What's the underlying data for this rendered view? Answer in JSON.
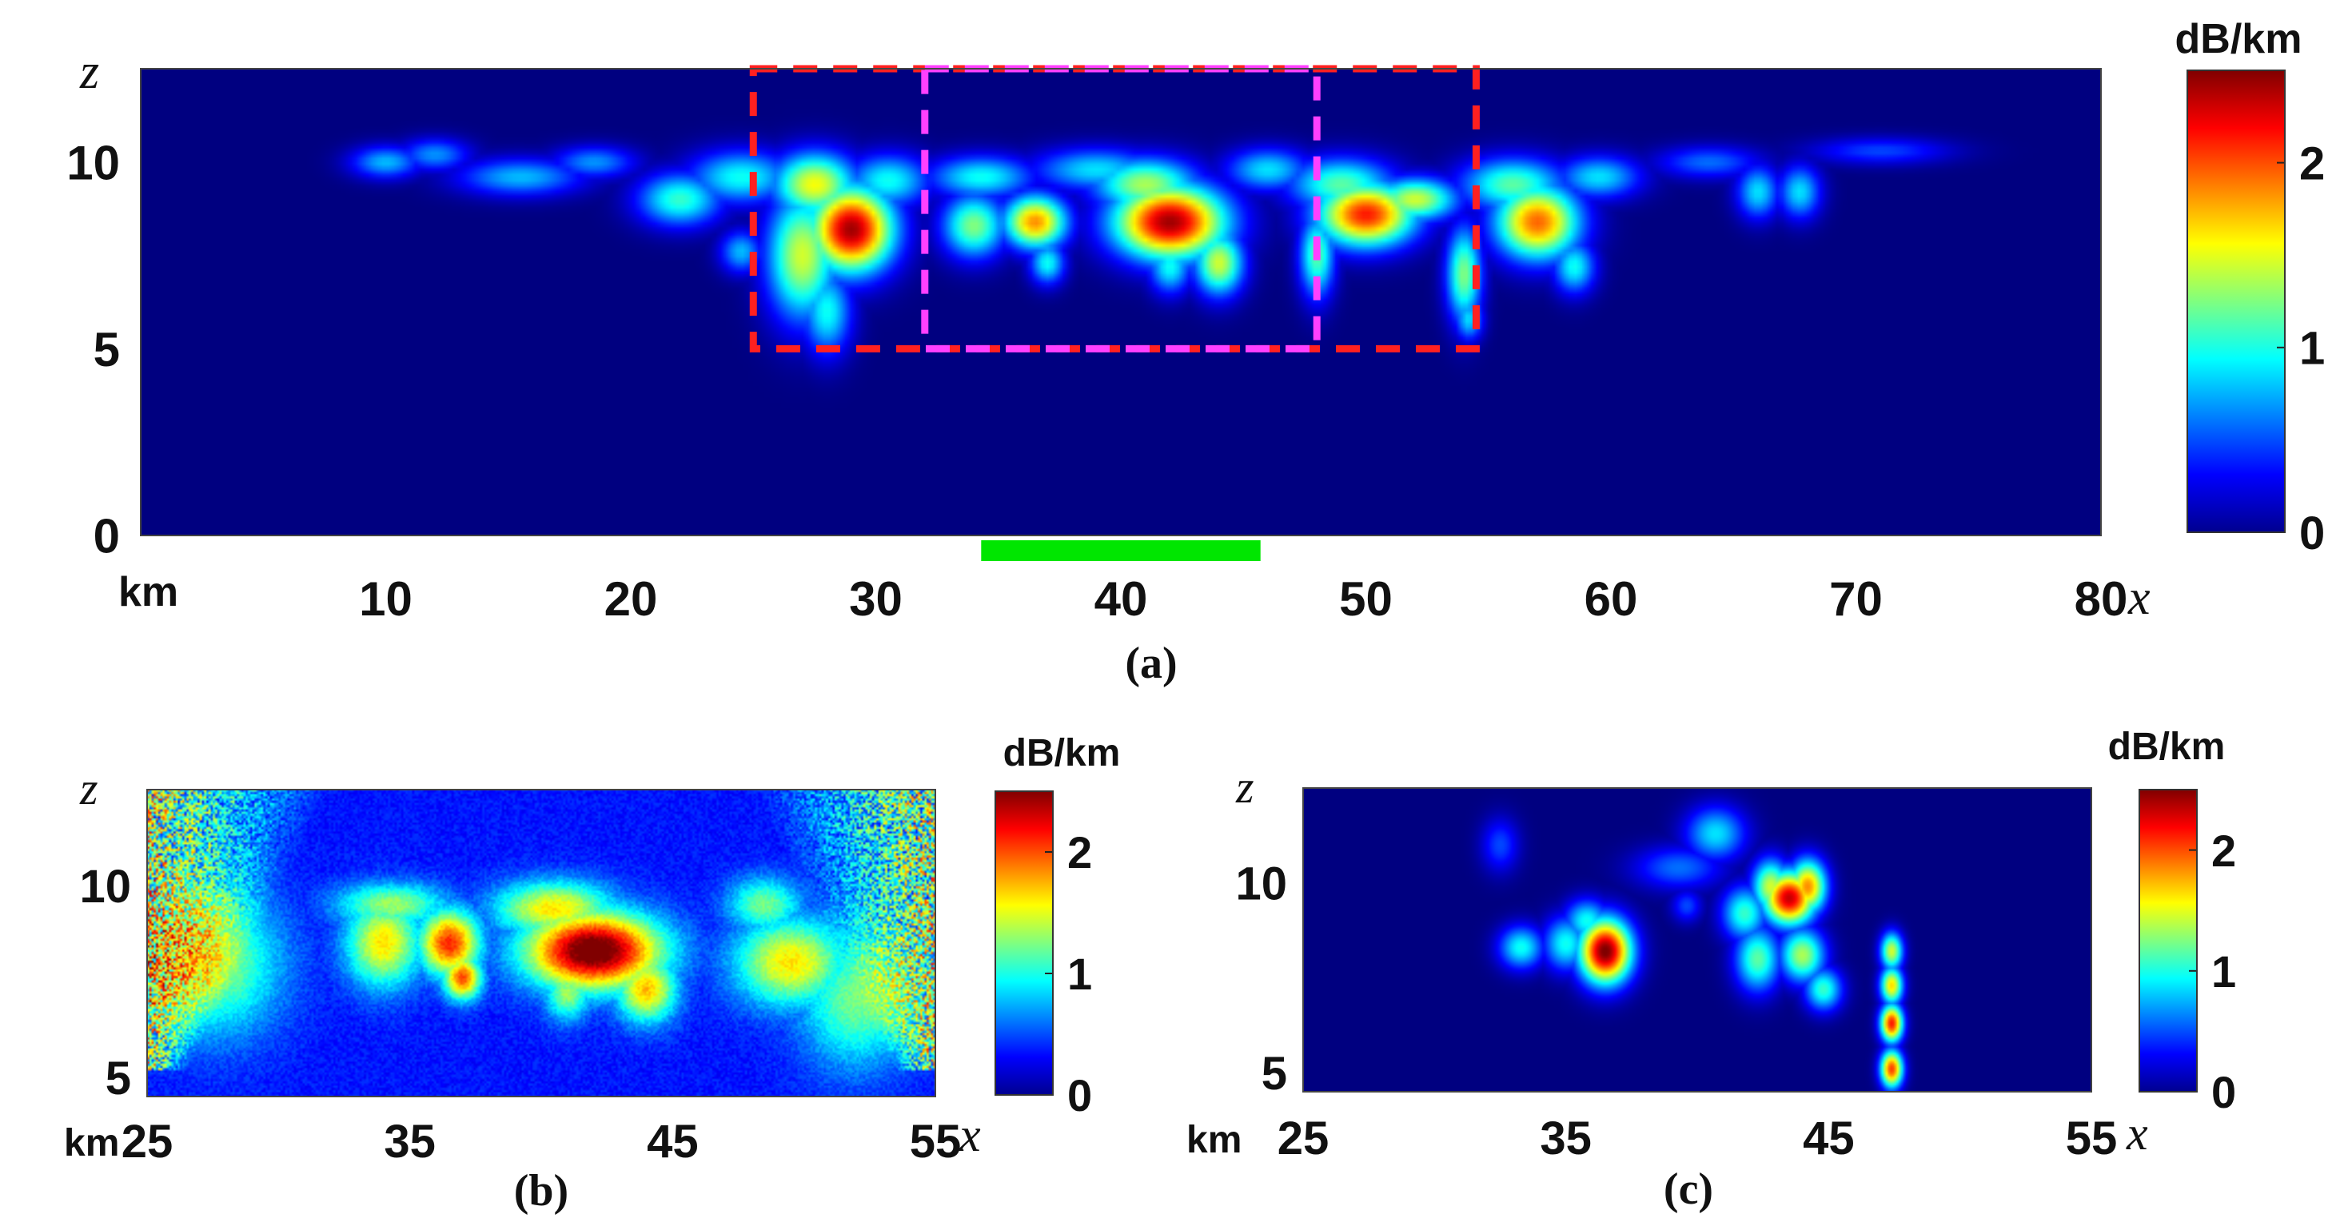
{
  "figure": {
    "panels": [
      {
        "id": "a",
        "caption": "(a)",
        "x_symbol": "x",
        "z_symbol": "z",
        "x_unit_label": "km",
        "colorbar_unit": "dB/km"
      },
      {
        "id": "b",
        "caption": "(b)",
        "x_symbol": "x",
        "z_symbol": "z",
        "x_unit_label": "km",
        "colorbar_unit": "dB/km"
      },
      {
        "id": "c",
        "caption": "(c)",
        "x_symbol": "x",
        "z_symbol": "z",
        "x_unit_label": "km",
        "colorbar_unit": "dB/km"
      }
    ]
  },
  "colors": {
    "background_field": "#00008f",
    "red_box": "#ff2020",
    "magenta_box": "#ff40ff",
    "green_bar": "#00e600",
    "colormap": "jet"
  },
  "chart_data": [
    {
      "type": "heatmap",
      "panel": "a",
      "title": "",
      "xlabel": "x",
      "ylabel": "z",
      "xlim": [
        0,
        80
      ],
      "ylim": [
        0,
        12.5
      ],
      "x_ticks": [
        10,
        20,
        30,
        40,
        50,
        60,
        70,
        80
      ],
      "y_ticks": [
        0,
        5,
        10
      ],
      "colorbar": {
        "label": "dB/km",
        "ticks": [
          0,
          1,
          2
        ],
        "range": [
          0,
          2.5
        ],
        "colormap": "jet"
      },
      "blobs": [
        {
          "x": 10.0,
          "z": 10.0,
          "sx": 1.0,
          "sz": 0.3,
          "v": 0.8
        },
        {
          "x": 12.0,
          "z": 10.2,
          "sx": 1.0,
          "sz": 0.3,
          "v": 0.7
        },
        {
          "x": 15.5,
          "z": 9.6,
          "sx": 1.8,
          "sz": 0.35,
          "v": 0.8
        },
        {
          "x": 18.5,
          "z": 10.0,
          "sx": 1.2,
          "sz": 0.3,
          "v": 0.7
        },
        {
          "x": 22.0,
          "z": 9.0,
          "sx": 1.2,
          "sz": 0.5,
          "v": 1.1
        },
        {
          "x": 24.5,
          "z": 9.6,
          "sx": 1.5,
          "sz": 0.5,
          "v": 1.0
        },
        {
          "x": 24.5,
          "z": 7.6,
          "sx": 0.6,
          "sz": 0.4,
          "v": 0.8
        },
        {
          "x": 27.0,
          "z": 7.5,
          "sx": 1.0,
          "sz": 1.2,
          "v": 1.5
        },
        {
          "x": 28.0,
          "z": 6.0,
          "sx": 0.7,
          "sz": 0.8,
          "v": 1.0
        },
        {
          "x": 29.0,
          "z": 8.2,
          "sx": 1.2,
          "sz": 0.8,
          "v": 2.5
        },
        {
          "x": 27.5,
          "z": 9.4,
          "sx": 1.2,
          "sz": 0.6,
          "v": 1.6
        },
        {
          "x": 30.5,
          "z": 9.5,
          "sx": 1.2,
          "sz": 0.5,
          "v": 1.0
        },
        {
          "x": 34.0,
          "z": 8.3,
          "sx": 0.9,
          "sz": 0.6,
          "v": 1.3
        },
        {
          "x": 34.3,
          "z": 9.6,
          "sx": 1.5,
          "sz": 0.4,
          "v": 1.0
        },
        {
          "x": 36.5,
          "z": 8.4,
          "sx": 0.9,
          "sz": 0.5,
          "v": 1.9
        },
        {
          "x": 37.0,
          "z": 7.3,
          "sx": 0.5,
          "sz": 0.4,
          "v": 1.0
        },
        {
          "x": 39.0,
          "z": 9.8,
          "sx": 1.8,
          "sz": 0.4,
          "v": 0.9
        },
        {
          "x": 42.0,
          "z": 8.4,
          "sx": 1.6,
          "sz": 0.7,
          "v": 2.5
        },
        {
          "x": 41.0,
          "z": 9.4,
          "sx": 1.5,
          "sz": 0.5,
          "v": 1.4
        },
        {
          "x": 44.0,
          "z": 7.3,
          "sx": 0.7,
          "sz": 0.6,
          "v": 1.5
        },
        {
          "x": 42.0,
          "z": 7.2,
          "sx": 0.6,
          "sz": 0.5,
          "v": 1.0
        },
        {
          "x": 46.0,
          "z": 9.8,
          "sx": 1.2,
          "sz": 0.4,
          "v": 0.9
        },
        {
          "x": 48.0,
          "z": 7.5,
          "sx": 0.5,
          "sz": 0.8,
          "v": 1.2
        },
        {
          "x": 50.0,
          "z": 8.6,
          "sx": 1.4,
          "sz": 0.6,
          "v": 2.2
        },
        {
          "x": 49.0,
          "z": 9.4,
          "sx": 1.5,
          "sz": 0.5,
          "v": 1.2
        },
        {
          "x": 52.0,
          "z": 9.0,
          "sx": 1.2,
          "sz": 0.4,
          "v": 1.5
        },
        {
          "x": 54.0,
          "z": 7.0,
          "sx": 0.5,
          "sz": 0.9,
          "v": 1.3
        },
        {
          "x": 54.2,
          "z": 5.8,
          "sx": 0.4,
          "sz": 0.4,
          "v": 0.9
        },
        {
          "x": 57.0,
          "z": 8.4,
          "sx": 1.2,
          "sz": 0.7,
          "v": 2.0
        },
        {
          "x": 56.0,
          "z": 9.4,
          "sx": 1.5,
          "sz": 0.5,
          "v": 1.2
        },
        {
          "x": 58.5,
          "z": 7.2,
          "sx": 0.6,
          "sz": 0.5,
          "v": 1.0
        },
        {
          "x": 59.5,
          "z": 9.6,
          "sx": 1.2,
          "sz": 0.4,
          "v": 0.9
        },
        {
          "x": 64.0,
          "z": 10.0,
          "sx": 1.5,
          "sz": 0.3,
          "v": 0.6
        },
        {
          "x": 66.0,
          "z": 9.2,
          "sx": 0.6,
          "sz": 0.5,
          "v": 0.9
        },
        {
          "x": 67.7,
          "z": 9.2,
          "sx": 0.6,
          "sz": 0.5,
          "v": 0.9
        },
        {
          "x": 71.0,
          "z": 10.3,
          "sx": 2.0,
          "sz": 0.25,
          "v": 0.5
        }
      ],
      "annotations": {
        "red_box": {
          "x0": 25.0,
          "x1": 54.5,
          "z0": 5.0,
          "z1": 12.5
        },
        "magenta_box": {
          "x0": 32.0,
          "x1": 48.0,
          "z0": 5.0,
          "z1": 12.5
        },
        "green_bar": {
          "x0": 34.3,
          "x1": 45.7
        }
      }
    },
    {
      "type": "heatmap",
      "panel": "b",
      "title": "",
      "xlabel": "x",
      "ylabel": "z",
      "xlim": [
        25,
        55
      ],
      "ylim": [
        4.5,
        12.5
      ],
      "x_ticks": [
        25,
        35,
        45,
        55
      ],
      "y_ticks": [
        5,
        10
      ],
      "colorbar": {
        "label": "dB/km",
        "ticks": [
          0,
          1,
          2
        ],
        "range": [
          0,
          2.5
        ],
        "colormap": "jet"
      },
      "blobs": [
        {
          "x": 34.0,
          "z": 8.5,
          "sx": 1.0,
          "sz": 0.8,
          "v": 1.3
        },
        {
          "x": 36.5,
          "z": 8.5,
          "sx": 0.8,
          "sz": 0.6,
          "v": 1.8
        },
        {
          "x": 37.0,
          "z": 7.6,
          "sx": 0.5,
          "sz": 0.4,
          "v": 1.7
        },
        {
          "x": 34.3,
          "z": 9.5,
          "sx": 1.5,
          "sz": 0.4,
          "v": 1.0
        },
        {
          "x": 42.0,
          "z": 8.3,
          "sx": 1.8,
          "sz": 0.7,
          "v": 2.4
        },
        {
          "x": 40.5,
          "z": 9.4,
          "sx": 1.6,
          "sz": 0.5,
          "v": 1.3
        },
        {
          "x": 44.0,
          "z": 7.3,
          "sx": 0.8,
          "sz": 0.6,
          "v": 1.4
        },
        {
          "x": 41.0,
          "z": 7.2,
          "sx": 0.6,
          "sz": 0.5,
          "v": 1.0
        },
        {
          "x": 49.5,
          "z": 8.0,
          "sx": 1.5,
          "sz": 0.8,
          "v": 1.3
        },
        {
          "x": 48.5,
          "z": 9.5,
          "sx": 1.0,
          "sz": 0.5,
          "v": 0.9
        },
        {
          "x": 27.5,
          "z": 8.0,
          "sx": 1.8,
          "sz": 1.3,
          "v": 1.0
        },
        {
          "x": 52.0,
          "z": 7.0,
          "sx": 1.5,
          "sz": 1.2,
          "v": 0.9
        }
      ],
      "noise_edges": true
    },
    {
      "type": "heatmap",
      "panel": "c",
      "title": "",
      "xlabel": "x",
      "ylabel": "z",
      "xlim": [
        25,
        55
      ],
      "ylim": [
        4.5,
        12.5
      ],
      "x_ticks": [
        25,
        35,
        45,
        55
      ],
      "y_ticks": [
        5,
        10
      ],
      "colorbar": {
        "label": "dB/km",
        "ticks": [
          0,
          1,
          2
        ],
        "range": [
          0,
          2.5
        ],
        "colormap": "jet"
      },
      "blobs": [
        {
          "x": 33.3,
          "z": 8.3,
          "sx": 0.6,
          "sz": 0.4,
          "v": 1.0
        },
        {
          "x": 35.0,
          "z": 8.4,
          "sx": 0.6,
          "sz": 0.5,
          "v": 1.0
        },
        {
          "x": 36.5,
          "z": 8.2,
          "sx": 0.7,
          "sz": 0.6,
          "v": 2.6
        },
        {
          "x": 35.8,
          "z": 9.0,
          "sx": 0.6,
          "sz": 0.4,
          "v": 1.0
        },
        {
          "x": 32.5,
          "z": 11.0,
          "sx": 0.5,
          "sz": 0.5,
          "v": 0.5
        },
        {
          "x": 39.3,
          "z": 10.4,
          "sx": 1.2,
          "sz": 0.4,
          "v": 0.6
        },
        {
          "x": 40.7,
          "z": 11.3,
          "sx": 0.8,
          "sz": 0.5,
          "v": 0.9
        },
        {
          "x": 42.8,
          "z": 9.9,
          "sx": 0.5,
          "sz": 0.5,
          "v": 1.5
        },
        {
          "x": 43.5,
          "z": 9.6,
          "sx": 0.7,
          "sz": 0.5,
          "v": 2.4
        },
        {
          "x": 44.2,
          "z": 9.9,
          "sx": 0.5,
          "sz": 0.5,
          "v": 1.9
        },
        {
          "x": 41.8,
          "z": 9.2,
          "sx": 0.6,
          "sz": 0.5,
          "v": 1.1
        },
        {
          "x": 42.3,
          "z": 8.0,
          "sx": 0.6,
          "sz": 0.6,
          "v": 1.2
        },
        {
          "x": 44.0,
          "z": 8.1,
          "sx": 0.6,
          "sz": 0.5,
          "v": 1.4
        },
        {
          "x": 44.8,
          "z": 7.2,
          "sx": 0.5,
          "sz": 0.4,
          "v": 1.1
        },
        {
          "x": 39.6,
          "z": 9.4,
          "sx": 0.4,
          "sz": 0.3,
          "v": 0.5
        },
        {
          "x": 47.4,
          "z": 8.2,
          "sx": 0.3,
          "sz": 0.35,
          "v": 1.5
        },
        {
          "x": 47.4,
          "z": 7.3,
          "sx": 0.3,
          "sz": 0.35,
          "v": 1.7
        },
        {
          "x": 47.4,
          "z": 6.3,
          "sx": 0.3,
          "sz": 0.35,
          "v": 2.2
        },
        {
          "x": 47.4,
          "z": 5.1,
          "sx": 0.3,
          "sz": 0.35,
          "v": 2.1
        }
      ]
    }
  ]
}
